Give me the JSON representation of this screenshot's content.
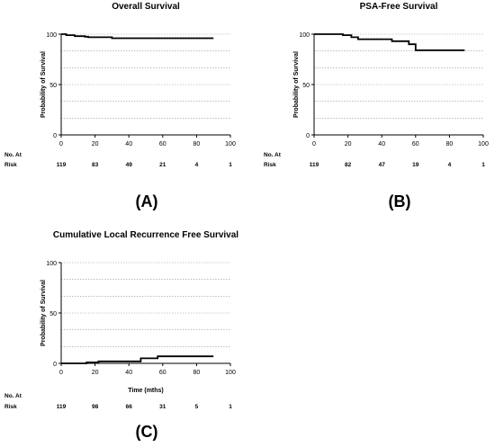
{
  "chart_data": [
    {
      "type": "line",
      "title": "Overall  Survival",
      "xlabel": "",
      "ylabel": "Probability of Survival",
      "xlim": [
        0,
        100
      ],
      "ylim": [
        0,
        100
      ],
      "xticks": [
        0,
        20,
        40,
        60,
        80,
        100
      ],
      "yticks": [
        0,
        50,
        100
      ],
      "grid": "horizontal dotted",
      "series": [
        {
          "x": [
            0,
            3,
            3,
            8,
            8,
            14,
            14,
            16,
            16,
            30,
            30,
            90
          ],
          "y": [
            100,
            100,
            99,
            99,
            98,
            98,
            97.5,
            97.5,
            97,
            97,
            96,
            96
          ]
        }
      ],
      "risk_label": [
        "No. At",
        "Risk"
      ],
      "risk_x": [
        0,
        20,
        40,
        60,
        80,
        100
      ],
      "risk_counts": [
        "119",
        "83",
        "49",
        "21",
        "4",
        "1"
      ],
      "panel_label": "(A)"
    },
    {
      "type": "line",
      "title": "PSA-Free Survival",
      "xlabel": "",
      "ylabel": "Probability of Survival",
      "xlim": [
        0,
        100
      ],
      "ylim": [
        0,
        100
      ],
      "xticks": [
        0,
        20,
        40,
        60,
        80,
        100
      ],
      "yticks": [
        0,
        50,
        100
      ],
      "grid": "horizontal dotted",
      "series": [
        {
          "x": [
            0,
            17,
            17,
            22,
            22,
            26,
            26,
            46,
            46,
            56,
            56,
            60,
            60,
            89
          ],
          "y": [
            100,
            100,
            99,
            99,
            97,
            97,
            95,
            95,
            93,
            93,
            90,
            90,
            84,
            84
          ]
        }
      ],
      "risk_label": [
        "No. At",
        "Risk"
      ],
      "risk_x": [
        0,
        20,
        40,
        60,
        80,
        100
      ],
      "risk_counts": [
        "119",
        "82",
        "47",
        "19",
        "4",
        "1"
      ],
      "panel_label": "(B)"
    },
    {
      "type": "line",
      "title": "Cumulative Local Recurrence  Free Survival",
      "xlabel": "Time (mths)",
      "ylabel": "Probability of Survival",
      "xlim": [
        0,
        100
      ],
      "ylim": [
        0,
        100
      ],
      "xticks": [
        0,
        20,
        40,
        60,
        80,
        100
      ],
      "yticks": [
        0,
        50,
        100
      ],
      "grid": "horizontal dotted",
      "series": [
        {
          "x": [
            0,
            15,
            15,
            22,
            22,
            47,
            47,
            57,
            57,
            90
          ],
          "y": [
            0,
            0,
            1,
            1,
            2,
            2,
            5,
            5,
            7,
            7
          ]
        }
      ],
      "risk_label": [
        "No. At",
        "Risk"
      ],
      "risk_x": [
        0,
        20,
        40,
        60,
        80,
        100
      ],
      "risk_counts": [
        "119",
        "98",
        "66",
        "31",
        "5",
        "1"
      ],
      "panel_label": "(C)"
    }
  ]
}
